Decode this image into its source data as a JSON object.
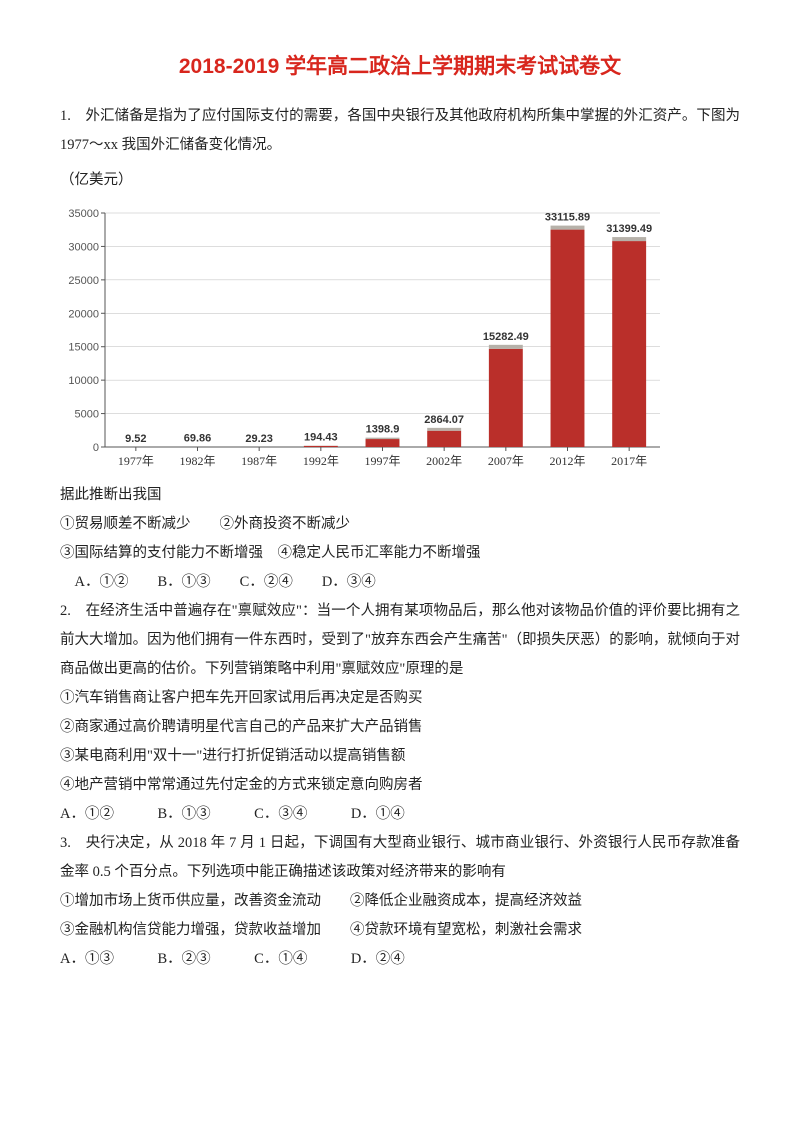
{
  "title": "2018-2019 学年高二政治上学期期末考试试卷文",
  "q1": {
    "num_text": "1.　外汇储备是指为了应付国际支付的需要，各国中央银行及其他政府机构所集中掌握的外汇资产。下图为 1977～xx 我国外汇储备变化情况。",
    "unit": "（亿美元）",
    "after_chart": "据此推断出我国",
    "opt1": "①贸易顺差不断减少　　②外商投资不断减少",
    "opt2": "③国际结算的支付能力不断增强　④稳定人民币汇率能力不断增强",
    "choices": "　A．①②　　B．①③　　C．②④　　D．③④"
  },
  "chart": {
    "type": "bar",
    "categories": [
      "1977年",
      "1982年",
      "1987年",
      "1992年",
      "1997年",
      "2002年",
      "2007年",
      "2012年",
      "2017年"
    ],
    "values": [
      9.52,
      69.86,
      29.23,
      194.43,
      1398.9,
      2864.07,
      15282.49,
      33115.89,
      31399.49
    ],
    "value_labels": [
      "9.52",
      "69.86",
      "29.23",
      "194.43",
      "1398.9",
      "2864.07",
      "15282.49",
      "33115.89",
      "31399.49"
    ],
    "bar_color": "#ba2f2a",
    "bar_top_color": "#b6b1a9",
    "background_color": "#ffffff",
    "grid_color": "#bbbbbb",
    "axis_color": "#555555",
    "ylim": [
      0,
      35000
    ],
    "ytick_step": 5000,
    "yticks": [
      "0",
      "5000",
      "10000",
      "15000",
      "20000",
      "25000",
      "30000",
      "35000"
    ],
    "bar_width_ratio": 0.55,
    "value_fontsize": 11,
    "label_fontsize": 12
  },
  "q2": {
    "text_a": "2.　在经济生活中普遍存在\"禀赋效应\"：当一个人拥有某项物品后，那么他对该物品价值的评价要比拥有之前大大增加。因为他们拥有一件东西时，受到了\"放弃东西会产生痛苦\"（即损失厌恶）的影响，就倾向于对商品做出更高的估价。下列营销策略中利用\"禀赋效应\"原理的是",
    "o1": "①汽车销售商让客户把车先开回家试用后再决定是否购买",
    "o2": "②商家通过高价聘请明星代言自己的产品来扩大产品销售",
    "o3": "③某电商利用\"双十一\"进行打折促销活动以提高销售额",
    "o4": "④地产营销中常常通过先付定金的方式来锁定意向购房者",
    "choices": "A．①②　　　B．①③　　　C．③④　　　D．①④"
  },
  "q3": {
    "text_a": "3.　央行决定，从 2018 年 7 月 1 日起，下调国有大型商业银行、城市商业银行、外资银行人民币存款准备金率 0.5 个百分点。下列选项中能正确描述该政策对经济带来的影响有",
    "o1": "①增加市场上货币供应量，改善资金流动　　②降低企业融资成本，提高经济效益",
    "o2": "③金融机构信贷能力增强，贷款收益增加　　④贷款环境有望宽松，刺激社会需求",
    "choices": "A．①③　　　B．②③　　　C．①④　　　D．②④"
  }
}
